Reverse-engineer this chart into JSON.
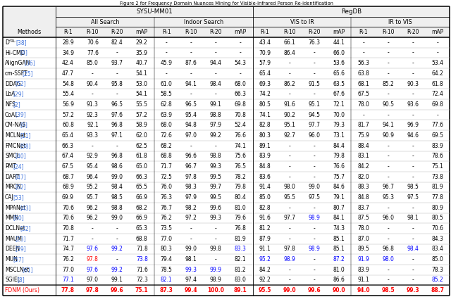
{
  "title": "Figure 2 for Frequency Domain Nuances Mining for Visible-Infrared Person Re-identification",
  "methods": [
    [
      "D",
      "2",
      "RL",
      "38"
    ],
    [
      "Hi-CMD",
      "",
      "",
      "4"
    ],
    [
      "AlignGAN",
      "",
      "",
      "36"
    ],
    [
      "cm-SSFT",
      "",
      "",
      "25"
    ],
    [
      "DDAG",
      "",
      "",
      "52"
    ],
    [
      "LbA",
      "",
      "",
      "29"
    ],
    [
      "NFS",
      "",
      "",
      "2"
    ],
    [
      "CoAL",
      "",
      "",
      "39"
    ],
    [
      "CM-NAS",
      "",
      "",
      "9"
    ],
    [
      "MCLNet",
      "",
      "",
      "11"
    ],
    [
      "FMCNet",
      "",
      "",
      "58"
    ],
    [
      "SMCL",
      "",
      "",
      "40"
    ],
    [
      "PMT",
      "",
      "",
      "24"
    ],
    [
      "DART",
      "",
      "",
      "47"
    ],
    [
      "MRCN",
      "",
      "",
      "62"
    ],
    [
      "CAJ",
      "",
      "",
      "53"
    ],
    [
      "MPANet",
      "",
      "",
      "43"
    ],
    [
      "MMN",
      "",
      "",
      "60"
    ],
    [
      "DCLNet",
      "",
      "",
      "32"
    ],
    [
      "MAUM",
      "",
      "",
      "23"
    ],
    [
      "DEEN",
      "",
      "",
      "59"
    ],
    [
      "MUN",
      "",
      "",
      "57"
    ],
    [
      "MSCLNet",
      "",
      "",
      "61"
    ],
    [
      "SGIEL",
      "",
      "",
      "8"
    ],
    [
      "FDNM (Ours)",
      "",
      "",
      ""
    ]
  ],
  "data": [
    [
      "28.9",
      "70.6",
      "82.4",
      "29.2",
      "-",
      "-",
      "-",
      "-",
      "43.4",
      "66.1",
      "76.3",
      "44.1",
      "-",
      "-",
      "-",
      "-"
    ],
    [
      "34.9",
      "77.6",
      "-",
      "35.9",
      "-",
      "-",
      "-",
      "-",
      "70.9",
      "86.4",
      "-",
      "66.0",
      "-",
      "-",
      "-",
      "-"
    ],
    [
      "42.4",
      "85.0",
      "93.7",
      "40.7",
      "45.9",
      "87.6",
      "94.4",
      "54.3",
      "57.9",
      "-",
      "-",
      "53.6",
      "56.3",
      "-",
      "-",
      "53.4"
    ],
    [
      "47.7",
      "-",
      "-",
      "54.1",
      "-",
      "-",
      "-",
      "-",
      "65.4",
      "-",
      "-",
      "65.6",
      "63.8",
      "-",
      "-",
      "64.2"
    ],
    [
      "54.8",
      "90.4",
      "95.8",
      "53.0",
      "61.0",
      "94.1",
      "98.4",
      "68.0",
      "69.3",
      "86.2",
      "91.5",
      "63.5",
      "68.1",
      "85.2",
      "90.3",
      "61.8"
    ],
    [
      "55.4",
      "-",
      "-",
      "54.1",
      "58.5",
      "-",
      "-",
      "66.3",
      "74.2",
      "-",
      "-",
      "67.6",
      "67.5",
      "-",
      "-",
      "72.4"
    ],
    [
      "56.9",
      "91.3",
      "96.5",
      "55.5",
      "62.8",
      "96.5",
      "99.1",
      "69.8",
      "80.5",
      "91.6",
      "95.1",
      "72.1",
      "78.0",
      "90.5",
      "93.6",
      "69.8"
    ],
    [
      "57.2",
      "92.3",
      "97.6",
      "57.2",
      "63.9",
      "95.4",
      "98.8",
      "70.8",
      "74.1",
      "90.2",
      "94.5",
      "70.0",
      "-",
      "-",
      "-",
      "-"
    ],
    [
      "60.8",
      "92.1",
      "96.8",
      "58.9",
      "68.0",
      "94.8",
      "97.9",
      "52.4",
      "82.8",
      "95.1",
      "97.7",
      "79.3",
      "81.7",
      "94.1",
      "96.9",
      "77.6"
    ],
    [
      "65.4",
      "93.3",
      "97.1",
      "62.0",
      "72.6",
      "97.0",
      "99.2",
      "76.6",
      "80.3",
      "92.7",
      "96.0",
      "73.1",
      "75.9",
      "90.9",
      "94.6",
      "69.5"
    ],
    [
      "66.3",
      "-",
      "-",
      "62.5",
      "68.2",
      "-",
      "-",
      "74.1",
      "89.1",
      "-",
      "-",
      "84.4",
      "88.4",
      "-",
      "-",
      "83.9"
    ],
    [
      "67.4",
      "92.9",
      "96.8",
      "61.8",
      "68.8",
      "96.6",
      "98.8",
      "75.6",
      "83.9",
      "-",
      "-",
      "79.8",
      "83.1",
      "-",
      "-",
      "78.6"
    ],
    [
      "67.5",
      "95.4",
      "98.6",
      "65.0",
      "71.7",
      "96.7",
      "99.3",
      "76.5",
      "84.8",
      "-",
      "-",
      "76.6",
      "84.2",
      "-",
      "-",
      "75.1"
    ],
    [
      "68.7",
      "96.4",
      "99.0",
      "66.3",
      "72.5",
      "97.8",
      "99.5",
      "78.2",
      "83.6",
      "-",
      "-",
      "75.7",
      "82.0",
      "-",
      "-",
      "73.8"
    ],
    [
      "68.9",
      "95.2",
      "98.4",
      "65.5",
      "76.0",
      "98.3",
      "99.7",
      "79.8",
      "91.4",
      "98.0",
      "99.0",
      "84.6",
      "88.3",
      "96.7",
      "98.5",
      "81.9"
    ],
    [
      "69.9",
      "95.7",
      "98.5",
      "66.9",
      "76.3",
      "97.9",
      "99.5",
      "80.4",
      "85.0",
      "95.5",
      "97.5",
      "79.1",
      "84.8",
      "95.3",
      "97.5",
      "77.8"
    ],
    [
      "70.6",
      "96.2",
      "98.8",
      "68.2",
      "76.7",
      "98.2",
      "99.6",
      "81.0",
      "82.8",
      "-",
      "-",
      "80.7",
      "83.7",
      "-",
      "-",
      "80.9"
    ],
    [
      "70.6",
      "96.2",
      "99.0",
      "66.9",
      "76.2",
      "97.2",
      "99.3",
      "79.6",
      "91.6",
      "97.7",
      "98.9",
      "84.1",
      "87.5",
      "96.0",
      "98.1",
      "80.5"
    ],
    [
      "70.8",
      "-",
      "-",
      "65.3",
      "73.5",
      "-",
      "-",
      "76.8",
      "81.2",
      "-",
      "-",
      "74.3",
      "78.0",
      "-",
      "-",
      "70.6"
    ],
    [
      "71.7",
      "-",
      "-",
      "68.8",
      "77.0",
      "-",
      "-",
      "81.9",
      "87.9",
      "-",
      "-",
      "85.1",
      "87.0",
      "-",
      "-",
      "84.3"
    ],
    [
      "74.7",
      "97.6",
      "99.2",
      "71.8",
      "80.3",
      "99.0",
      "99.8",
      "83.3",
      "91.1",
      "97.8",
      "98.9",
      "85.1",
      "89.5",
      "96.8",
      "98.4",
      "83.4"
    ],
    [
      "76.2",
      "97.8",
      "-",
      "73.8",
      "79.4",
      "98.1",
      "-",
      "82.1",
      "95.2",
      "98.9",
      "-",
      "87.2",
      "91.9",
      "98.0",
      "-",
      "85.0"
    ],
    [
      "77.0",
      "97.6",
      "99.2",
      "71.6",
      "78.5",
      "99.3",
      "99.9",
      "81.2",
      "84.2",
      "-",
      "-",
      "81.0",
      "83.9",
      "-",
      "-",
      "78.3"
    ],
    [
      "77.1",
      "97.0",
      "99.1",
      "72.3",
      "82.1",
      "97.4",
      "98.9",
      "83.0",
      "92.2",
      "-",
      "-",
      "86.6",
      "91.1",
      "-",
      "-",
      "85.2"
    ],
    [
      "77.8",
      "97.8",
      "99.6",
      "75.1",
      "87.3",
      "99.4",
      "100.0",
      "89.1",
      "95.5",
      "99.0",
      "99.6",
      "90.0",
      "94.0",
      "98.5",
      "99.3",
      "88.7"
    ]
  ],
  "special_colors": {
    "20,2": "blue",
    "20,3": "blue",
    "20,8": "blue",
    "20,11": "blue",
    "20,15": "blue",
    "21,2": "red",
    "21,4": "blue",
    "21,9": "blue",
    "21,10": "blue",
    "21,12": "blue",
    "21,13": "blue",
    "21,14": "blue",
    "22,2": "blue",
    "22,3": "blue",
    "22,6": "blue",
    "22,7": "blue",
    "23,1": "blue",
    "23,5": "blue",
    "23,16": "blue",
    "17,11": "blue"
  },
  "background_color": "#FFFFFF"
}
